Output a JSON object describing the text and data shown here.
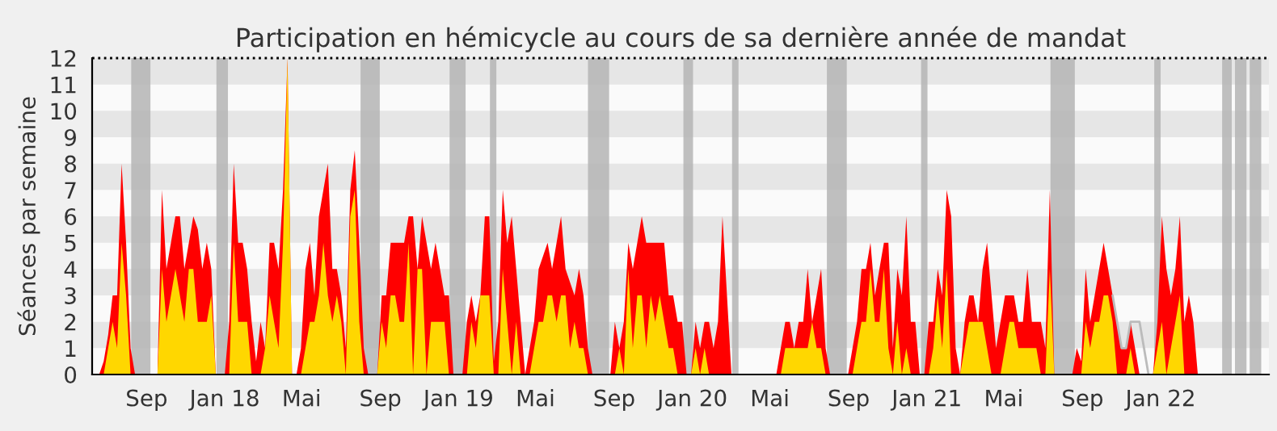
{
  "chart_data": {
    "type": "area",
    "title": "Participation en hémicycle au cours de sa dernière année de mandat",
    "ylabel": "Séances par semaine",
    "x": [
      "2017-06-19",
      "2017-06-26",
      "2017-07-03",
      "2017-07-10",
      "2017-07-17",
      "2017-07-24",
      "2017-07-31",
      "2017-08-07",
      "2017-08-14",
      "2017-08-21",
      "2017-08-28",
      "2017-09-04",
      "2017-09-11",
      "2017-09-18",
      "2017-09-25",
      "2017-10-02",
      "2017-10-09",
      "2017-10-16",
      "2017-10-23",
      "2017-10-30",
      "2017-11-06",
      "2017-11-13",
      "2017-11-20",
      "2017-11-27",
      "2017-12-04",
      "2017-12-11",
      "2017-12-18",
      "2017-12-25",
      "2018-01-01",
      "2018-01-08",
      "2018-01-15",
      "2018-01-22",
      "2018-01-29",
      "2018-02-05",
      "2018-02-12",
      "2018-02-19",
      "2018-02-26",
      "2018-03-05",
      "2018-03-12",
      "2018-03-19",
      "2018-03-26",
      "2018-04-02",
      "2018-04-09",
      "2018-04-16",
      "2018-04-23",
      "2018-04-30",
      "2018-05-07",
      "2018-05-14",
      "2018-05-21",
      "2018-05-28",
      "2018-06-04",
      "2018-06-11",
      "2018-06-18",
      "2018-06-25",
      "2018-07-02",
      "2018-07-09",
      "2018-07-16",
      "2018-07-23",
      "2018-07-30",
      "2018-08-06",
      "2018-08-13",
      "2018-08-20",
      "2018-08-27",
      "2018-09-03",
      "2018-09-10",
      "2018-09-17",
      "2018-09-24",
      "2018-10-01",
      "2018-10-08",
      "2018-10-15",
      "2018-10-22",
      "2018-10-29",
      "2018-11-05",
      "2018-11-12",
      "2018-11-19",
      "2018-11-26",
      "2018-12-03",
      "2018-12-10",
      "2018-12-17",
      "2018-12-24",
      "2018-12-31",
      "2019-01-07",
      "2019-01-14",
      "2019-01-21",
      "2019-01-28",
      "2019-02-04",
      "2019-02-11",
      "2019-02-18",
      "2019-02-25",
      "2019-03-04",
      "2019-03-11",
      "2019-03-18",
      "2019-03-25",
      "2019-04-01",
      "2019-04-08",
      "2019-04-15",
      "2019-04-22",
      "2019-04-29",
      "2019-05-06",
      "2019-05-13",
      "2019-05-20",
      "2019-05-27",
      "2019-06-03",
      "2019-06-10",
      "2019-06-17",
      "2019-06-24",
      "2019-07-01",
      "2019-07-08",
      "2019-07-15",
      "2019-07-22",
      "2019-07-29",
      "2019-08-05",
      "2019-08-12",
      "2019-08-19",
      "2019-08-26",
      "2019-09-02",
      "2019-09-09",
      "2019-09-16",
      "2019-09-23",
      "2019-09-30",
      "2019-10-07",
      "2019-10-14",
      "2019-10-21",
      "2019-10-28",
      "2019-11-04",
      "2019-11-11",
      "2019-11-18",
      "2019-11-25",
      "2019-12-02",
      "2019-12-09",
      "2019-12-16",
      "2019-12-23",
      "2019-12-30",
      "2020-01-06",
      "2020-01-13",
      "2020-01-20",
      "2020-01-27",
      "2020-02-03",
      "2020-02-10",
      "2020-02-17",
      "2020-02-24",
      "2020-03-02",
      "2020-03-09",
      "2020-03-16",
      "2020-03-23",
      "2020-03-30",
      "2020-04-06",
      "2020-04-13",
      "2020-04-20",
      "2020-04-27",
      "2020-05-04",
      "2020-05-11",
      "2020-05-18",
      "2020-05-25",
      "2020-06-01",
      "2020-06-08",
      "2020-06-15",
      "2020-06-22",
      "2020-06-29",
      "2020-07-06",
      "2020-07-13",
      "2020-07-20",
      "2020-07-27",
      "2020-08-03",
      "2020-08-10",
      "2020-08-17",
      "2020-08-24",
      "2020-08-31",
      "2020-09-07",
      "2020-09-14",
      "2020-09-21",
      "2020-09-28",
      "2020-10-05",
      "2020-10-12",
      "2020-10-19",
      "2020-10-26",
      "2020-11-02",
      "2020-11-09",
      "2020-11-16",
      "2020-11-23",
      "2020-11-30",
      "2020-12-07",
      "2020-12-14",
      "2020-12-21",
      "2020-12-28",
      "2021-01-04",
      "2021-01-11",
      "2021-01-18",
      "2021-01-25",
      "2021-02-01",
      "2021-02-08",
      "2021-02-15",
      "2021-02-22",
      "2021-03-01",
      "2021-03-08",
      "2021-03-15",
      "2021-03-22",
      "2021-03-29",
      "2021-04-05",
      "2021-04-12",
      "2021-04-19",
      "2021-04-26",
      "2021-05-03",
      "2021-05-10",
      "2021-05-17",
      "2021-05-24",
      "2021-05-31",
      "2021-06-07",
      "2021-06-14",
      "2021-06-21",
      "2021-06-28",
      "2021-07-05",
      "2021-07-12",
      "2021-07-19",
      "2021-07-26",
      "2021-08-02",
      "2021-08-09",
      "2021-08-16",
      "2021-08-23",
      "2021-08-30",
      "2021-09-06",
      "2021-09-13",
      "2021-09-20",
      "2021-09-27",
      "2021-10-04",
      "2021-10-11",
      "2021-10-18",
      "2021-10-25",
      "2021-11-01",
      "2021-11-08",
      "2021-11-15",
      "2021-11-22",
      "2021-11-29",
      "2021-12-06",
      "2021-12-13",
      "2021-12-20",
      "2021-12-27",
      "2022-01-03",
      "2022-01-10",
      "2022-01-17",
      "2022-01-24",
      "2022-01-31",
      "2022-02-07",
      "2022-02-14",
      "2022-02-21",
      "2022-02-28",
      "2022-03-07"
    ],
    "series": [
      {
        "color": "#ff0000",
        "values": [
          0,
          0.5,
          1.5,
          3,
          3,
          8,
          5,
          1,
          0,
          0,
          0,
          0,
          0,
          0,
          7,
          4,
          5,
          6,
          6,
          4,
          5,
          6,
          5.5,
          4,
          5,
          4,
          0,
          0,
          0,
          2,
          8,
          5,
          5,
          4,
          2,
          0.5,
          2,
          1,
          5,
          5,
          4,
          7,
          12,
          0,
          0,
          1,
          4,
          5,
          3,
          6,
          7,
          8,
          4,
          4,
          3,
          1,
          7,
          8.5,
          5,
          1,
          0,
          0,
          0,
          3,
          3,
          5,
          5,
          5,
          5,
          6,
          6,
          4,
          6,
          5,
          4,
          5,
          4,
          3,
          3,
          0,
          0,
          0,
          2,
          3,
          2,
          3,
          6,
          6,
          0.5,
          2,
          7,
          5,
          6,
          4,
          2,
          0,
          1,
          2,
          4,
          4.5,
          5,
          4,
          5,
          6,
          4,
          3.5,
          3,
          4,
          3,
          1,
          0,
          0,
          0,
          0,
          0,
          2,
          1,
          2,
          5,
          4,
          5,
          6,
          5,
          5,
          5,
          5,
          5,
          3,
          3,
          2,
          2,
          0,
          0,
          2,
          1,
          2,
          2,
          1,
          2,
          6,
          3,
          0,
          0,
          0,
          0,
          0,
          0,
          0,
          0,
          0,
          0,
          0,
          1,
          2,
          2,
          1,
          2,
          2,
          4,
          2,
          3,
          4,
          1,
          0,
          0,
          0,
          0,
          0,
          1,
          2,
          4,
          4,
          5,
          3,
          4,
          5,
          5,
          1,
          4,
          3,
          6,
          2,
          2,
          0,
          0,
          2,
          2,
          4,
          3,
          7,
          6,
          1,
          0,
          2,
          3,
          3,
          2,
          4,
          5,
          3,
          1,
          2,
          3,
          3,
          3,
          2,
          2,
          4,
          2,
          2,
          2,
          1,
          7,
          0,
          0,
          0,
          0,
          0,
          1,
          0.5,
          4,
          2,
          3,
          4,
          5,
          4,
          3,
          2,
          1,
          1,
          2,
          1,
          0,
          0,
          0,
          0,
          2,
          6,
          4,
          3,
          4,
          6,
          2,
          3,
          2,
          0,
          0
        ]
      },
      {
        "color": "#ffd700",
        "x": [
          "2017-06-26",
          "2017-07-03",
          "2017-07-10",
          "2017-07-17",
          "2017-07-24",
          "2017-07-31",
          "2017-08-07",
          "2017-08-14",
          "2017-08-21",
          "2017-08-28",
          "2017-09-04",
          "2017-09-11",
          "2017-09-18",
          "2017-09-25",
          "2017-10-02",
          "2017-10-09",
          "2017-10-16",
          "2017-10-23",
          "2017-10-30",
          "2017-11-06",
          "2017-11-13",
          "2017-11-20",
          "2017-11-27",
          "2017-12-04",
          "2017-12-11",
          "2017-12-18",
          "2017-12-25",
          "2018-01-01",
          "2018-01-08",
          "2018-01-15",
          "2018-01-22",
          "2018-01-29",
          "2018-02-05",
          "2018-02-12",
          "2018-02-19",
          "2018-02-26",
          "2018-03-05",
          "2018-03-12",
          "2018-03-19",
          "2018-03-26",
          "2018-04-02",
          "2018-04-09",
          "2018-04-16",
          "2018-04-23",
          "2018-04-30",
          "2018-05-07",
          "2018-05-14",
          "2018-05-21",
          "2018-05-28",
          "2018-06-04",
          "2018-06-11",
          "2018-06-18",
          "2018-06-25",
          "2018-07-02",
          "2018-07-09",
          "2018-07-16",
          "2018-07-23",
          "2018-07-30",
          "2018-08-06",
          "2018-08-13",
          "2018-08-20",
          "2018-08-27",
          "2018-09-03",
          "2018-09-10",
          "2018-09-17",
          "2018-09-24",
          "2018-10-01",
          "2018-10-08",
          "2018-10-15",
          "2018-10-22",
          "2018-10-29",
          "2018-11-05",
          "2018-11-12",
          "2018-11-19",
          "2018-11-26",
          "2018-12-03",
          "2018-12-10",
          "2018-12-17",
          "2018-12-24",
          "2018-12-31",
          "2019-01-07",
          "2019-01-14",
          "2019-01-21",
          "2019-01-28",
          "2019-02-04",
          "2019-02-11",
          "2019-02-18",
          "2019-02-25",
          "2019-03-04",
          "2019-03-11",
          "2019-03-18",
          "2019-03-25",
          "2019-04-01",
          "2019-04-08",
          "2019-04-15",
          "2019-04-22",
          "2019-04-29",
          "2019-05-06",
          "2019-05-13",
          "2019-05-20",
          "2019-05-27",
          "2019-06-03",
          "2019-06-10",
          "2019-06-17",
          "2019-06-24",
          "2019-07-01",
          "2019-07-08",
          "2019-07-15",
          "2019-07-22",
          "2019-07-29",
          "2019-08-05",
          "2019-08-12",
          "2019-08-19",
          "2019-08-26",
          "2019-09-02",
          "2019-09-09",
          "2019-09-16",
          "2019-09-23",
          "2019-09-30",
          "2019-10-07",
          "2019-10-14",
          "2019-10-21",
          "2019-10-28",
          "2019-11-04",
          "2019-11-11",
          "2019-11-18",
          "2019-11-25",
          "2019-12-02",
          "2019-12-09",
          "2019-12-16",
          "2019-12-23",
          "2019-12-30",
          "2020-01-06",
          "2020-01-13",
          "2020-01-20",
          "2020-01-27",
          "2020-02-03",
          "2020-02-10",
          "2020-02-17",
          "2020-02-24",
          "2020-03-02",
          "2020-03-09",
          "2020-03-16",
          "2020-03-23",
          "2020-03-30",
          "2020-04-06",
          "2020-04-13",
          "2020-04-20",
          "2020-04-27",
          "2020-05-04",
          "2020-05-11",
          "2020-05-18",
          "2020-05-25",
          "2020-06-01",
          "2020-06-08",
          "2020-06-15",
          "2020-06-22",
          "2020-06-29",
          "2020-07-06",
          "2020-07-13",
          "2020-07-20",
          "2020-07-27",
          "2020-08-03",
          "2020-08-10",
          "2020-08-17",
          "2020-08-24",
          "2020-08-31",
          "2020-09-07",
          "2020-09-14",
          "2020-09-21",
          "2020-09-28",
          "2020-10-05",
          "2020-10-12",
          "2020-10-19",
          "2020-10-26",
          "2020-11-02",
          "2020-11-09",
          "2020-11-16",
          "2020-11-23",
          "2020-11-30",
          "2020-12-07",
          "2020-12-14",
          "2020-12-21",
          "2020-12-28",
          "2021-01-04",
          "2021-01-11",
          "2021-01-18",
          "2021-01-25",
          "2021-02-01",
          "2021-02-08",
          "2021-02-15",
          "2021-02-22",
          "2021-03-01",
          "2021-03-08",
          "2021-03-15",
          "2021-03-22",
          "2021-03-29",
          "2021-04-05",
          "2021-04-12",
          "2021-04-19",
          "2021-04-26",
          "2021-05-03",
          "2021-05-10",
          "2021-05-17",
          "2021-05-24",
          "2021-05-31",
          "2021-06-07",
          "2021-06-14",
          "2021-06-21",
          "2021-06-28",
          "2021-07-05",
          "2021-07-12",
          "2021-07-19",
          "2021-07-26",
          "2021-08-02",
          "2021-08-09",
          "2021-08-16",
          "2021-08-23",
          "2021-08-30",
          "2021-09-06",
          "2021-09-13",
          "2021-09-20",
          "2021-09-27",
          "2021-10-04",
          "2021-10-11",
          "2021-10-18",
          "2021-10-25",
          "2021-11-01",
          "2021-11-08",
          "2021-11-15",
          "2021-11-22",
          "2021-11-29",
          "2021-12-06",
          "2021-12-13",
          "2021-12-20",
          "2021-12-27",
          "2022-01-03",
          "2022-01-10",
          "2022-01-17",
          "2022-01-24",
          "2022-01-31",
          "2022-02-07",
          "2022-02-14",
          "2022-02-21",
          "2022-02-28",
          "2022-03-07"
        ],
        "values": [
          0,
          1,
          2,
          1,
          5,
          3,
          0,
          0,
          0,
          0,
          0,
          0,
          0,
          4,
          2,
          3,
          4,
          3,
          2,
          4,
          4,
          2,
          2,
          2,
          3,
          0,
          0,
          0,
          0,
          5,
          2,
          2,
          2,
          0,
          0,
          0,
          1,
          3,
          2,
          1,
          5,
          12,
          0,
          0,
          0,
          1,
          2,
          2,
          3,
          5,
          3,
          2,
          3,
          2,
          0,
          6,
          7,
          2,
          0,
          0,
          0,
          0,
          2,
          1,
          3,
          3,
          2,
          2,
          5,
          0,
          4,
          4,
          0,
          2,
          2,
          2,
          2,
          0,
          0,
          0,
          0,
          0,
          2,
          1,
          3,
          3,
          3,
          0,
          0,
          4,
          2,
          0,
          2,
          0,
          0,
          0,
          1,
          2,
          2,
          3,
          3,
          2,
          3,
          3,
          1,
          2,
          1,
          1,
          0,
          0,
          0,
          0,
          0,
          0,
          0,
          1,
          0,
          4,
          1,
          3,
          3,
          1,
          3,
          2,
          3,
          2,
          1,
          1,
          0,
          0,
          0,
          0,
          1,
          0,
          1,
          0,
          0,
          0,
          0,
          0,
          0,
          0,
          0,
          0,
          0,
          0,
          0,
          0,
          0,
          0,
          0,
          0,
          1,
          1,
          1,
          1,
          1,
          1,
          2,
          1,
          1,
          0,
          0,
          0,
          0,
          0,
          0,
          0,
          1,
          2,
          2,
          4,
          2,
          2,
          4,
          1,
          0,
          2,
          0,
          1,
          0,
          0,
          0,
          0,
          0,
          1,
          3,
          1,
          4,
          0,
          0,
          0,
          1,
          2,
          2,
          2,
          2,
          1,
          0,
          0,
          0,
          1,
          2,
          2,
          1,
          1,
          1,
          1,
          1,
          0,
          0,
          4,
          0,
          0,
          0,
          0,
          0,
          0,
          0,
          2,
          1,
          2,
          2,
          3,
          3,
          2,
          0,
          0,
          0,
          1,
          0,
          0,
          0,
          0,
          0,
          1,
          2,
          0,
          1,
          2,
          3,
          0,
          0,
          0,
          0,
          0
        ]
      },
      {
        "type": "line",
        "color": "#bbbbbb",
        "x": [
          "2021-10-18",
          "2021-10-25",
          "2021-11-01",
          "2021-11-08",
          "2021-11-15",
          "2021-11-22",
          "2021-11-29",
          "2021-12-06",
          "2021-12-13"
        ],
        "values": [
          3,
          2,
          1,
          1,
          2,
          2,
          2,
          1,
          0
        ]
      }
    ],
    "xlim": [
      "2017-06-08",
      "2022-06-19"
    ],
    "xticks": [
      {
        "value": "2017-09-01",
        "label": "Sep"
      },
      {
        "value": "2018-01-01",
        "label": "Jan 18"
      },
      {
        "value": "2018-05-01",
        "label": "Mai"
      },
      {
        "value": "2018-09-01",
        "label": "Sep"
      },
      {
        "value": "2019-01-01",
        "label": "Jan 19"
      },
      {
        "value": "2019-05-01",
        "label": "Mai"
      },
      {
        "value": "2019-09-01",
        "label": "Sep"
      },
      {
        "value": "2020-01-01",
        "label": "Jan 20"
      },
      {
        "value": "2020-05-01",
        "label": "Mai"
      },
      {
        "value": "2020-09-01",
        "label": "Sep"
      },
      {
        "value": "2021-01-01",
        "label": "Jan 21"
      },
      {
        "value": "2021-05-01",
        "label": "Mai"
      },
      {
        "value": "2021-09-01",
        "label": "Sep"
      },
      {
        "value": "2022-01-01",
        "label": "Jan 22"
      }
    ],
    "ylim": [
      0,
      12
    ],
    "yticks": [
      0,
      1,
      2,
      3,
      4,
      5,
      6,
      7,
      8,
      9,
      10,
      11,
      12
    ],
    "grid": false,
    "legend": false,
    "ref_lines": [
      {
        "axis": "y",
        "value": 12,
        "color": "#000000",
        "line_style": "dotted"
      }
    ],
    "bands": [
      {
        "axis": "y",
        "from": 1,
        "to": 2,
        "color": "#e6e6e6"
      },
      {
        "axis": "y",
        "from": 3,
        "to": 4,
        "color": "#e6e6e6"
      },
      {
        "axis": "y",
        "from": 5,
        "to": 6,
        "color": "#e6e6e6"
      },
      {
        "axis": "y",
        "from": 7,
        "to": 8,
        "color": "#e6e6e6"
      },
      {
        "axis": "y",
        "from": 9,
        "to": 10,
        "color": "#e6e6e6"
      },
      {
        "axis": "y",
        "from": 11,
        "to": 12,
        "color": "#e6e6e6"
      },
      {
        "axis": "x",
        "from": "2017-08-08",
        "to": "2017-09-07",
        "color": "#b4b4b4"
      },
      {
        "axis": "x",
        "from": "2017-12-19",
        "to": "2018-01-06",
        "color": "#b4b4b4"
      },
      {
        "axis": "x",
        "from": "2018-08-01",
        "to": "2018-08-31",
        "color": "#b4b4b4"
      },
      {
        "axis": "x",
        "from": "2018-12-18",
        "to": "2019-01-12",
        "color": "#b4b4b4"
      },
      {
        "axis": "x",
        "from": "2019-02-19",
        "to": "2019-03-01",
        "color": "#b4b4b4"
      },
      {
        "axis": "x",
        "from": "2019-07-22",
        "to": "2019-08-24",
        "color": "#b4b4b4"
      },
      {
        "axis": "x",
        "from": "2019-12-18",
        "to": "2020-01-02",
        "color": "#b4b4b4"
      },
      {
        "axis": "x",
        "from": "2020-03-03",
        "to": "2020-03-13",
        "color": "#b4b4b4"
      },
      {
        "axis": "x",
        "from": "2020-07-29",
        "to": "2020-08-29",
        "color": "#b4b4b4"
      },
      {
        "axis": "x",
        "from": "2020-12-23",
        "to": "2021-01-02",
        "color": "#b4b4b4"
      },
      {
        "axis": "x",
        "from": "2021-07-13",
        "to": "2021-08-20",
        "color": "#b4b4b4"
      },
      {
        "axis": "x",
        "from": "2021-12-22",
        "to": "2022-01-01",
        "color": "#b4b4b4"
      },
      {
        "axis": "x",
        "from": "2022-04-07",
        "to": "2022-04-22",
        "color": "#b4b4b4"
      },
      {
        "axis": "x",
        "from": "2022-04-27",
        "to": "2022-05-15",
        "color": "#b4b4b4"
      },
      {
        "axis": "x",
        "from": "2022-05-20",
        "to": "2022-06-07",
        "color": "#b4b4b4"
      }
    ]
  }
}
